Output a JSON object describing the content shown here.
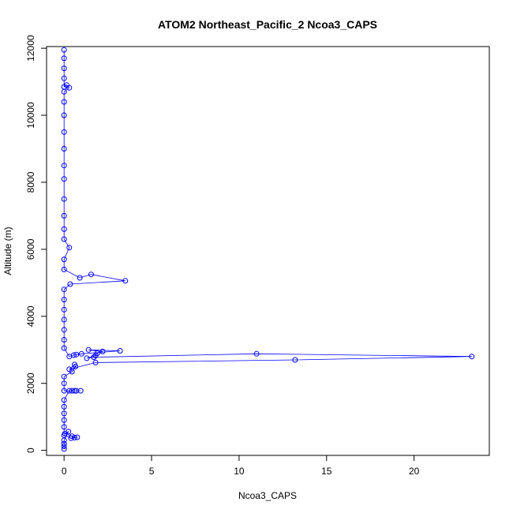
{
  "chart_data": {
    "type": "scatter",
    "title": "ATOM2 Northeast_Pacific_2 Ncoa3_CAPS",
    "xlabel": "Ncoa3_CAPS",
    "ylabel": "Altitude (m)",
    "xlim": [
      -1.0,
      24.3
    ],
    "ylim": [
      -150,
      12050
    ],
    "x_ticks": [
      0,
      5,
      10,
      15,
      20
    ],
    "x_tick_labels": [
      "0",
      "5",
      "10",
      "15",
      "20"
    ],
    "y_ticks": [
      0,
      2000,
      4000,
      6000,
      8000,
      10000,
      12000
    ],
    "y_tick_labels": [
      "0",
      "2000",
      "4000",
      "6000",
      "8000",
      "10000",
      "12000"
    ],
    "grid": false,
    "legend": "none",
    "series": [
      {
        "color": "#0000ff",
        "marker": "open-circle",
        "line": true,
        "points": [
          [
            0.0,
            40
          ],
          [
            0.0,
            120
          ],
          [
            0.0,
            200
          ],
          [
            0.0,
            300
          ],
          [
            0.25,
            560
          ],
          [
            0.05,
            500
          ],
          [
            0.45,
            420
          ],
          [
            0.6,
            380
          ],
          [
            0.75,
            390
          ],
          [
            0.4,
            360
          ],
          [
            0.0,
            450
          ],
          [
            0.0,
            700
          ],
          [
            0.0,
            900
          ],
          [
            0.0,
            1100
          ],
          [
            0.0,
            1300
          ],
          [
            0.0,
            1500
          ],
          [
            0.3,
            1780
          ],
          [
            0.45,
            1780
          ],
          [
            0.6,
            1780
          ],
          [
            0.7,
            1780
          ],
          [
            0.95,
            1780
          ],
          [
            0.0,
            1780
          ],
          [
            0.0,
            2000
          ],
          [
            0.0,
            2200
          ],
          [
            0.45,
            2350
          ],
          [
            0.65,
            2500
          ],
          [
            0.6,
            2560
          ],
          [
            0.3,
            2420
          ],
          [
            1.8,
            2620
          ],
          [
            13.2,
            2700
          ],
          [
            23.3,
            2800
          ],
          [
            11.0,
            2880
          ],
          [
            1.7,
            2780
          ],
          [
            1.3,
            2750
          ],
          [
            1.8,
            2830
          ],
          [
            1.9,
            2900
          ],
          [
            2.2,
            2950
          ],
          [
            1.4,
            3000
          ],
          [
            3.2,
            2970
          ],
          [
            1.0,
            2880
          ],
          [
            0.7,
            2860
          ],
          [
            0.55,
            2840
          ],
          [
            0.3,
            2800
          ],
          [
            0.0,
            3050
          ],
          [
            0.0,
            3300
          ],
          [
            0.0,
            3600
          ],
          [
            0.0,
            3900
          ],
          [
            0.0,
            4200
          ],
          [
            0.0,
            4500
          ],
          [
            0.0,
            4800
          ],
          [
            0.35,
            4960
          ],
          [
            3.5,
            5060
          ],
          [
            1.55,
            5250
          ],
          [
            0.9,
            5150
          ],
          [
            0.0,
            5400
          ],
          [
            0.0,
            5700
          ],
          [
            0.3,
            6050
          ],
          [
            0.0,
            6300
          ],
          [
            0.0,
            6600
          ],
          [
            0.0,
            7000
          ],
          [
            0.0,
            7500
          ],
          [
            0.0,
            8100
          ],
          [
            0.0,
            8500
          ],
          [
            0.0,
            9000
          ],
          [
            0.0,
            9500
          ],
          [
            0.0,
            10000
          ],
          [
            0.0,
            10400
          ],
          [
            0.0,
            10700
          ],
          [
            0.3,
            10820
          ],
          [
            0.15,
            10900
          ],
          [
            0.0,
            10850
          ],
          [
            0.0,
            11100
          ],
          [
            0.0,
            11400
          ],
          [
            0.0,
            11700
          ],
          [
            0.0,
            11950
          ]
        ]
      }
    ]
  }
}
